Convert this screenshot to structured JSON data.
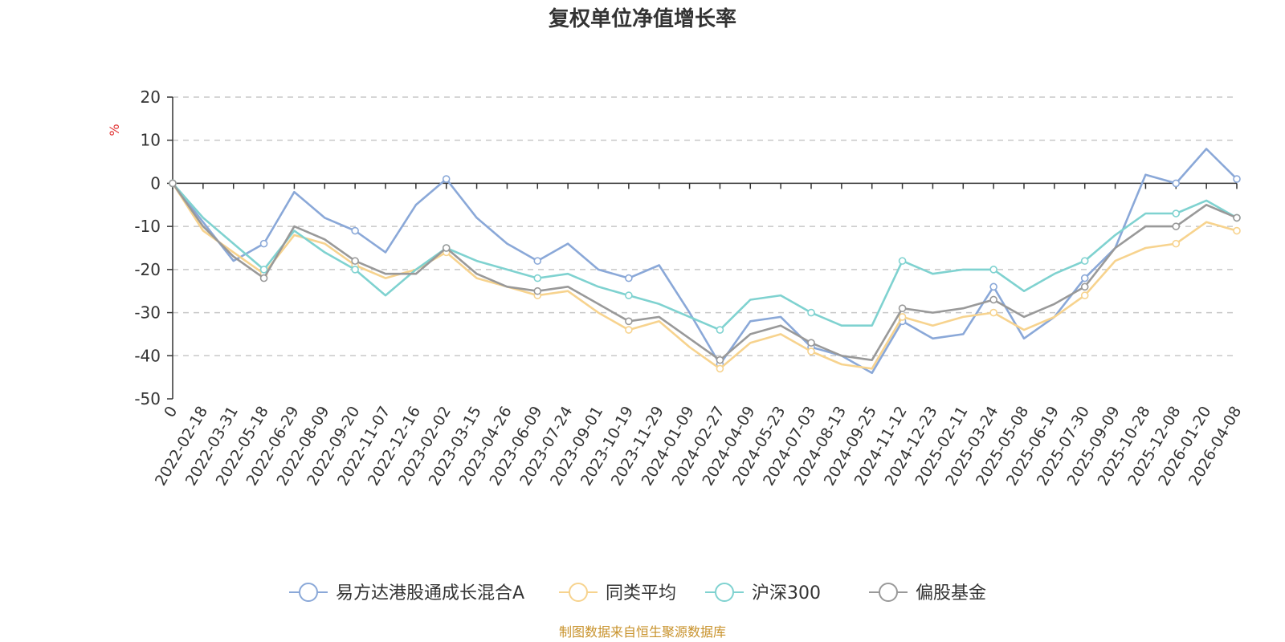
{
  "chart_data": {
    "type": "line",
    "title": "复权单位净值增长率",
    "ylabel": "%",
    "ylim": [
      -50,
      20
    ],
    "yticks": [
      20,
      10,
      0,
      -10,
      -20,
      -30,
      -40,
      -50
    ],
    "x_tick_labels": [
      "0",
      "2022-02-18",
      "2022-03-31",
      "2022-05-18",
      "2022-06-29",
      "2022-08-09",
      "2022-09-20",
      "2022-11-07",
      "2022-12-16",
      "2023-02-02",
      "2023-03-15",
      "2023-04-26",
      "2023-06-09",
      "2023-07-24",
      "2023-09-01",
      "2023-10-19",
      "2023-11-29",
      "2024-01-09",
      "2024-02-27",
      "2024-04-09",
      "2024-05-23",
      "2024-07-03",
      "2024-08-13",
      "2024-09-25",
      "2024-11-12",
      "2024-12-23",
      "2025-02-11",
      "2025-03-24",
      "2025-05-08",
      "2025-06-19",
      "2025-07-30",
      "2025-09-09",
      "2025-10-28",
      "2025-12-08",
      "2026-01-20",
      "2026-04-08"
    ],
    "x_index": [
      0,
      1,
      2,
      3,
      4,
      5,
      6,
      7,
      8,
      9,
      10,
      11,
      12,
      13,
      14,
      15,
      16,
      17,
      18,
      19,
      20,
      21,
      22,
      23,
      24,
      25,
      26,
      27,
      28,
      29,
      30,
      31,
      32,
      33,
      34,
      35
    ],
    "series": [
      {
        "name": "易方达港股通成长混合A",
        "color": "#8aa8d8",
        "values": [
          0,
          -9,
          -18,
          -14,
          -2,
          -8,
          -11,
          -16,
          -5,
          1,
          -8,
          -14,
          -18,
          -14,
          -20,
          -22,
          -19,
          -30,
          -42,
          -32,
          -31,
          -38,
          -40,
          -44,
          -32,
          -36,
          -35,
          -24,
          -36,
          -31,
          -22,
          -15,
          2,
          0,
          8,
          1
        ]
      },
      {
        "name": "同类平均",
        "color": "#f7d38e",
        "values": [
          0,
          -11,
          -16,
          -21,
          -12,
          -14,
          -19,
          -22,
          -20,
          -16,
          -22,
          -24,
          -26,
          -25,
          -30,
          -34,
          -32,
          -38,
          -43,
          -37,
          -35,
          -39,
          -42,
          -43,
          -31,
          -33,
          -31,
          -30,
          -34,
          -31,
          -26,
          -18,
          -15,
          -14,
          -9,
          -11
        ]
      },
      {
        "name": "沪深300",
        "color": "#7fd2d0",
        "values": [
          0,
          -8,
          -14,
          -20,
          -11,
          -16,
          -20,
          -26,
          -20,
          -15,
          -18,
          -20,
          -22,
          -21,
          -24,
          -26,
          -28,
          -31,
          -34,
          -27,
          -26,
          -30,
          -33,
          -33,
          -18,
          -21,
          -20,
          -20,
          -25,
          -21,
          -18,
          -12,
          -7,
          -7,
          -4,
          -8
        ]
      },
      {
        "name": "偏股基金",
        "color": "#999999",
        "values": [
          0,
          -10,
          -17,
          -22,
          -10,
          -13,
          -18,
          -21,
          -21,
          -15,
          -21,
          -24,
          -25,
          -24,
          -28,
          -32,
          -31,
          -36,
          -41,
          -35,
          -33,
          -37,
          -40,
          -41,
          -29,
          -30,
          -29,
          -27,
          -31,
          -28,
          -24,
          -15,
          -10,
          -10,
          -5,
          -8
        ]
      }
    ],
    "source_text": "制图数据来自恒生聚源数据库"
  }
}
